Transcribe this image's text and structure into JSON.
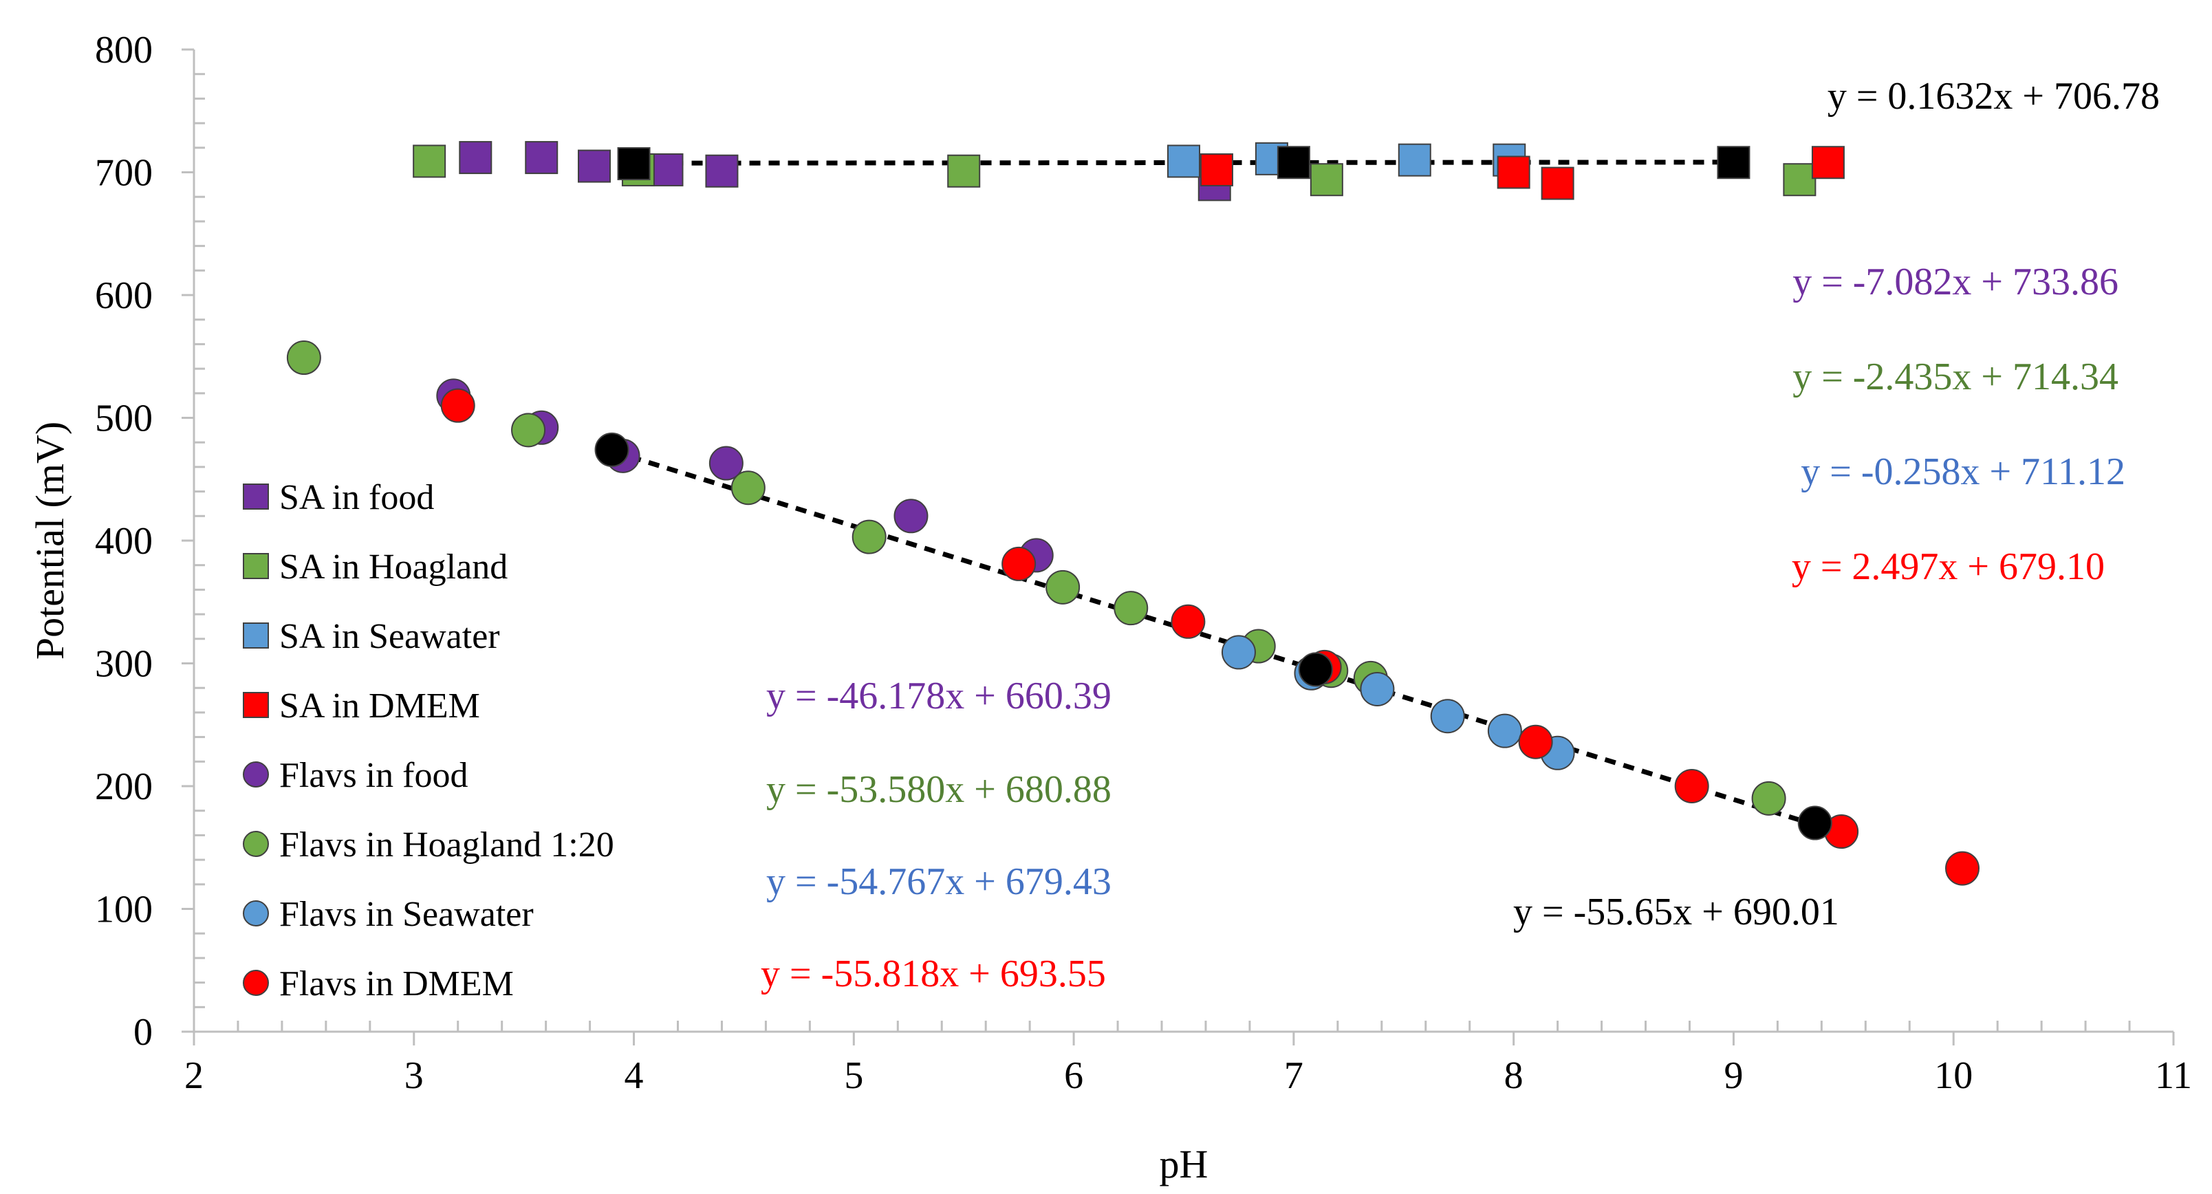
{
  "chart_data": {
    "type": "scatter",
    "xlabel": "pH",
    "ylabel": "Potential (mV)",
    "xlim": [
      2,
      11
    ],
    "ylim": [
      0,
      800
    ],
    "xticks": [
      "2",
      "3",
      "4",
      "5",
      "6",
      "7",
      "8",
      "9",
      "10",
      "11"
    ],
    "yticks": [
      "0",
      "100",
      "200",
      "300",
      "400",
      "500",
      "600",
      "700",
      "800"
    ],
    "legend_position": "left",
    "series": [
      {
        "name": "SA in food",
        "marker": "square",
        "color": "#7030A0",
        "points": [
          [
            3.28,
            712
          ],
          [
            3.58,
            712
          ],
          [
            3.82,
            705
          ],
          [
            4.15,
            702
          ],
          [
            4.4,
            701
          ],
          [
            6.64,
            690
          ]
        ]
      },
      {
        "name": "SA in Hoagland",
        "marker": "square",
        "color": "#70AD47",
        "points": [
          [
            3.07,
            709
          ],
          [
            4.02,
            702
          ],
          [
            5.5,
            701
          ],
          [
            7.15,
            694
          ],
          [
            9.3,
            694
          ]
        ]
      },
      {
        "name": "SA in Seawater",
        "marker": "square",
        "color": "#5B9BD5",
        "points": [
          [
            6.5,
            709
          ],
          [
            6.9,
            711
          ],
          [
            7.55,
            710
          ],
          [
            7.98,
            710
          ]
        ]
      },
      {
        "name": "SA in DMEM",
        "marker": "square",
        "color": "#FF0000",
        "points": [
          [
            6.65,
            702
          ],
          [
            8.0,
            700
          ],
          [
            8.2,
            691
          ],
          [
            9.43,
            708
          ]
        ]
      },
      {
        "name": "Flavs in food",
        "marker": "circle",
        "color": "#7030A0",
        "points": [
          [
            3.18,
            518
          ],
          [
            3.58,
            492
          ],
          [
            3.95,
            469
          ],
          [
            4.42,
            463
          ],
          [
            5.26,
            420
          ],
          [
            5.83,
            388
          ]
        ]
      },
      {
        "name": "Flavs in Hoagland 1:20",
        "marker": "circle",
        "color": "#70AD47",
        "points": [
          [
            2.5,
            549
          ],
          [
            3.52,
            490
          ],
          [
            4.52,
            443
          ],
          [
            5.07,
            403
          ],
          [
            5.95,
            362
          ],
          [
            6.26,
            345
          ],
          [
            6.84,
            314
          ],
          [
            7.17,
            294
          ],
          [
            7.35,
            288
          ],
          [
            9.16,
            190
          ]
        ]
      },
      {
        "name": "Flavs in Seawater",
        "marker": "circle",
        "color": "#5B9BD5",
        "points": [
          [
            6.75,
            309
          ],
          [
            7.08,
            292
          ],
          [
            7.38,
            279
          ],
          [
            7.7,
            257
          ],
          [
            7.96,
            245
          ],
          [
            8.2,
            227
          ]
        ]
      },
      {
        "name": "Flavs in DMEM",
        "marker": "circle",
        "color": "#FF0000",
        "points": [
          [
            3.2,
            510
          ],
          [
            5.75,
            381
          ],
          [
            6.52,
            334
          ],
          [
            7.14,
            297
          ],
          [
            8.1,
            236
          ],
          [
            8.81,
            200
          ],
          [
            9.49,
            163
          ],
          [
            10.04,
            133
          ]
        ]
      }
    ],
    "reference_points": {
      "color": "#000000",
      "squares": [
        [
          4.0,
          707
        ],
        [
          7.0,
          708
        ],
        [
          9.0,
          708
        ]
      ],
      "circles": [
        [
          3.9,
          474
        ],
        [
          7.1,
          295
        ],
        [
          9.37,
          170
        ]
      ]
    },
    "trendlines": [
      {
        "slope": 0.1632,
        "intercept": 706.78,
        "x_range": [
          4.0,
          9.0
        ],
        "style": "dashed",
        "color": "#000000"
      },
      {
        "slope": -55.65,
        "intercept": 690.01,
        "x_range": [
          3.9,
          9.37
        ],
        "style": "dashed",
        "color": "#000000"
      }
    ],
    "annotations": [
      {
        "text": "y = 0.1632x + 706.78",
        "color": "#000000"
      },
      {
        "text": "y = -7.082x + 733.86",
        "color": "#7030A0"
      },
      {
        "text": "y = -2.435x + 714.34",
        "color": "#548235"
      },
      {
        "text": "y = -0.258x + 711.12",
        "color": "#4472C4"
      },
      {
        "text": "y = 2.497x + 679.10",
        "color": "#FF0000"
      },
      {
        "text": "y = -46.178x + 660.39",
        "color": "#7030A0"
      },
      {
        "text": "y = -53.580x + 680.88",
        "color": "#548235"
      },
      {
        "text": "y = -54.767x + 679.43",
        "color": "#4472C4"
      },
      {
        "text": "y = -55.818x + 693.55",
        "color": "#FF0000"
      },
      {
        "text": "y = -55.65x + 690.01",
        "color": "#000000"
      }
    ]
  }
}
